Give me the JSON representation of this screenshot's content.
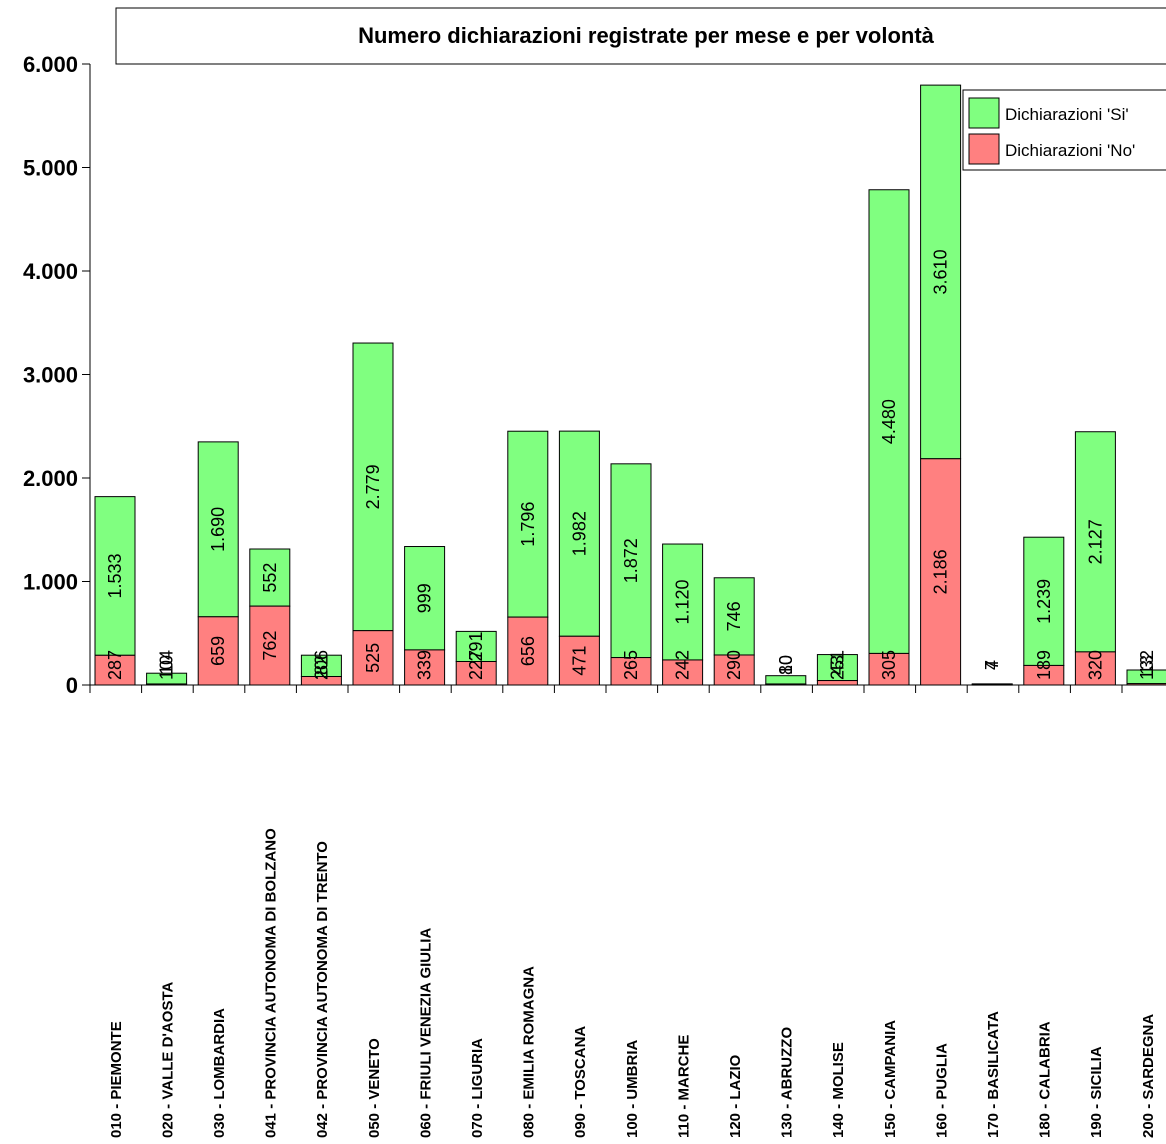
{
  "chart_data": {
    "type": "bar",
    "stacked": true,
    "title": "Numero dichiarazioni registrate per mese e per volontà",
    "xlabel": "",
    "ylabel": "",
    "ylim": [
      0,
      6000
    ],
    "yticks": [
      0,
      1000,
      2000,
      3000,
      4000,
      5000,
      6000
    ],
    "ytick_labels": [
      "0",
      "1.000",
      "2.000",
      "3.000",
      "4.000",
      "5.000",
      "6.000"
    ],
    "grid": false,
    "legend_position": "top-right",
    "categories": [
      "010 - PIEMONTE",
      "020 - VALLE D'AOSTA",
      "030 - LOMBARDIA",
      "041 - PROVINCIA  AUTONOMA DI BOLZANO",
      "042 - PROVINCIA  AUTONOMA DI TRENTO",
      "050 - VENETO",
      "060 - FRIULI VENEZIA GIULIA",
      "070 - LIGURIA",
      "080 - EMILIA ROMAGNA",
      "090 - TOSCANA",
      "100 - UMBRIA",
      "110 - MARCHE",
      "120 - LAZIO",
      "130 - ABRUZZO",
      "140 - MOLISE",
      "150 - CAMPANIA",
      "160 - PUGLIA",
      "170 - BASILICATA",
      "180 - CALABRIA",
      "190 - SICILIA",
      "200 - SARDEGNA"
    ],
    "series": [
      {
        "name": "Dichiarazioni 'No'",
        "color": "#ff8080",
        "values": [
          287,
          10,
          659,
          762,
          82,
          525,
          339,
          227,
          656,
          471,
          265,
          242,
          290,
          10,
          43,
          305,
          2186,
          4,
          189,
          320,
          13
        ],
        "labels": [
          "287",
          "10",
          "659",
          "762",
          "82",
          "525",
          "339",
          "227",
          "656",
          "471",
          "265",
          "242",
          "290",
          "10",
          "43",
          "305",
          "2.186",
          "4",
          "189",
          "320",
          "13"
        ]
      },
      {
        "name": "Dichiarazioni 'Si'",
        "color": "#80ff80",
        "values": [
          1533,
          104,
          1690,
          552,
          206,
          2779,
          999,
          291,
          1796,
          1982,
          1872,
          1120,
          746,
          80,
          251,
          4480,
          3610,
          7,
          1239,
          2127,
          132
        ],
        "labels": [
          "1.533",
          "104",
          "1.690",
          "552",
          "206",
          "2.779",
          "999",
          "291",
          "1.796",
          "1.982",
          "1.872",
          "1.120",
          "746",
          "80",
          "251",
          "4.480",
          "3.610",
          "7",
          "1.239",
          "2.127",
          "132"
        ]
      }
    ]
  }
}
